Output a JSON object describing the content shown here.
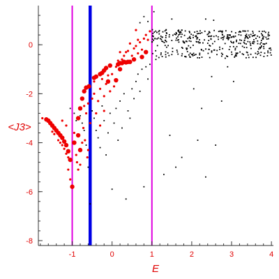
{
  "chart_data": {
    "type": "scatter",
    "title": "",
    "xlabel": "E",
    "ylabel": "<J3>",
    "xlim": [
      -1.85,
      4.05
    ],
    "ylim": [
      -8.2,
      1.6
    ],
    "x_ticks": [
      -1,
      0,
      1,
      2,
      3,
      4
    ],
    "x_tick_labels": [
      "-1",
      "0",
      "1",
      "2",
      "3",
      "4"
    ],
    "y_ticks": [
      0,
      -2,
      -4,
      -6,
      -8
    ],
    "y_tick_labels": [
      "0",
      "-2",
      "-4",
      "-6",
      "-8"
    ],
    "grid": false,
    "colors": {
      "axes": "#333333",
      "labels": "#e00000",
      "red_points": "#ee0000",
      "black_points": "#000000",
      "magenta_lines": "#e000e0",
      "blue_line": "#0000e6"
    },
    "vertical_lines": [
      {
        "x": -1.0,
        "color": "magenta"
      },
      {
        "x": -0.55,
        "color": "blue"
      },
      {
        "x": 1.0,
        "color": "magenta"
      }
    ],
    "series": [
      {
        "marker": "large red circles",
        "points": [
          [
            -1.65,
            -3.05
          ],
          [
            -1.6,
            -3.1
          ],
          [
            -1.55,
            -3.2
          ],
          [
            -1.5,
            -3.3
          ],
          [
            -1.45,
            -3.4
          ],
          [
            -1.4,
            -3.5
          ],
          [
            -1.35,
            -3.6
          ],
          [
            -1.3,
            -3.7
          ],
          [
            -1.25,
            -3.8
          ],
          [
            -1.2,
            -3.95
          ],
          [
            -1.15,
            -4.1
          ],
          [
            -1.1,
            -4.35
          ],
          [
            -1.05,
            -4.7
          ],
          [
            -1.0,
            -5.8
          ],
          [
            -0.85,
            -3.0
          ],
          [
            -0.8,
            -2.6
          ],
          [
            -0.75,
            -2.2
          ],
          [
            -0.7,
            -1.9
          ],
          [
            -0.65,
            -1.75
          ],
          [
            -0.58,
            -1.7
          ],
          [
            -0.45,
            -1.35
          ],
          [
            -0.4,
            -1.3
          ],
          [
            -0.3,
            -1.2
          ],
          [
            -0.25,
            -1.15
          ],
          [
            -0.2,
            -1.05
          ],
          [
            -0.15,
            -0.95
          ],
          [
            -0.05,
            -0.85
          ],
          [
            -0.1,
            -1.5
          ],
          [
            0.15,
            -0.8
          ],
          [
            0.2,
            -0.75
          ],
          [
            0.25,
            -0.75
          ],
          [
            0.3,
            -0.7
          ],
          [
            0.35,
            -0.72
          ],
          [
            0.4,
            -0.7
          ],
          [
            0.45,
            -0.7
          ],
          [
            0.55,
            -0.6
          ],
          [
            0.75,
            -0.5
          ],
          [
            0.85,
            -0.3
          ],
          [
            -0.85,
            -3.7
          ],
          [
            -0.95,
            -4.0
          ],
          [
            -0.8,
            -4.3
          ],
          [
            0.1,
            -1.45
          ],
          [
            0.2,
            -1.0
          ]
        ]
      },
      {
        "marker": "small red dots",
        "points": [
          [
            -1.75,
            -3.0
          ],
          [
            -1.5,
            -3.55
          ],
          [
            -1.45,
            -3.65
          ],
          [
            -1.35,
            -3.9
          ],
          [
            -1.3,
            -4.0
          ],
          [
            -1.25,
            -4.1
          ],
          [
            -1.2,
            -4.25
          ],
          [
            -1.15,
            -4.45
          ],
          [
            -1.1,
            -4.6
          ],
          [
            -1.1,
            -5.1
          ],
          [
            -1.05,
            -5.5
          ],
          [
            -1.25,
            -3.1
          ],
          [
            -1.15,
            -3.3
          ],
          [
            -0.95,
            -3.6
          ],
          [
            -0.9,
            -4.5
          ],
          [
            -0.88,
            -4.8
          ],
          [
            -0.85,
            -5.1
          ],
          [
            -0.8,
            -4.9
          ],
          [
            -0.7,
            -2.5
          ],
          [
            -0.72,
            -3.4
          ],
          [
            -0.68,
            -3.9
          ],
          [
            -0.6,
            -2.4
          ],
          [
            -0.5,
            -2.2
          ],
          [
            -0.45,
            -2.0
          ],
          [
            -0.35,
            -2.3
          ],
          [
            -0.3,
            -1.8
          ],
          [
            -0.2,
            -2.1
          ],
          [
            -0.15,
            -1.6
          ],
          [
            -0.05,
            -1.9
          ],
          [
            0.05,
            -1.7
          ],
          [
            0.1,
            -0.9
          ],
          [
            0.15,
            -0.65
          ],
          [
            0.25,
            -0.6
          ],
          [
            0.3,
            -0.45
          ],
          [
            0.35,
            -0.3
          ],
          [
            0.4,
            -0.25
          ],
          [
            0.5,
            -0.45
          ],
          [
            0.55,
            -0.15
          ],
          [
            0.6,
            -0.05
          ],
          [
            0.65,
            -0.35
          ],
          [
            0.7,
            0.1
          ],
          [
            0.75,
            -0.2
          ],
          [
            0.8,
            0.25
          ],
          [
            0.85,
            0.4
          ],
          [
            0.9,
            0.2
          ],
          [
            0.95,
            0.55
          ],
          [
            0.6,
            0.6
          ],
          [
            0.65,
            0.2
          ],
          [
            0.45,
            0.05
          ],
          [
            0.2,
            -0.3
          ],
          [
            -0.45,
            -1.5
          ],
          [
            -0.25,
            -1.4
          ],
          [
            -0.1,
            -1.25
          ],
          [
            0.0,
            -1.2
          ],
          [
            -0.65,
            -2.8
          ],
          [
            -0.55,
            -3.2
          ],
          [
            -0.4,
            -2.8
          ],
          [
            -0.3,
            -3.3
          ],
          [
            -0.2,
            -2.7
          ],
          [
            -0.75,
            -4.0
          ],
          [
            -0.6,
            -4.3
          ],
          [
            -0.62,
            -4.6
          ]
        ]
      },
      {
        "marker": "small black dots",
        "points": [
          [
            -1.05,
            -2.6
          ],
          [
            -0.95,
            -2.8
          ],
          [
            -0.9,
            -3.1
          ],
          [
            -0.8,
            -2.9
          ],
          [
            -0.75,
            -3.2
          ],
          [
            -0.7,
            -3.5
          ],
          [
            -0.65,
            -4.1
          ],
          [
            -0.6,
            -5.0
          ],
          [
            -0.55,
            -6.5
          ],
          [
            -0.5,
            -2.7
          ],
          [
            -0.45,
            -3.0
          ],
          [
            -0.4,
            -3.5
          ],
          [
            -0.35,
            -3.8
          ],
          [
            -0.3,
            -4.2
          ],
          [
            -0.25,
            -2.5
          ],
          [
            -0.2,
            -3.1
          ],
          [
            -0.15,
            -4.5
          ],
          [
            -0.1,
            -3.6
          ],
          [
            -0.05,
            -2.8
          ],
          [
            0.0,
            -5.9
          ],
          [
            0.05,
            -3.2
          ],
          [
            0.1,
            -2.6
          ],
          [
            0.15,
            -3.9
          ],
          [
            0.2,
            -2.3
          ],
          [
            0.25,
            -3.4
          ],
          [
            0.3,
            -2.0
          ],
          [
            0.35,
            -6.3
          ],
          [
            0.4,
            -2.7
          ],
          [
            0.45,
            -3.0
          ],
          [
            0.5,
            -1.8
          ],
          [
            0.55,
            -2.2
          ],
          [
            0.6,
            -1.5
          ],
          [
            0.65,
            -1.2
          ],
          [
            0.7,
            -1.9
          ],
          [
            0.75,
            -1.0
          ],
          [
            0.8,
            -5.8
          ],
          [
            0.85,
            -0.9
          ],
          [
            0.9,
            -1.4
          ],
          [
            0.95,
            -0.8
          ],
          [
            1.3,
            -5.3
          ],
          [
            1.45,
            -3.7
          ],
          [
            1.6,
            -5.0
          ],
          [
            1.75,
            -4.6
          ],
          [
            2.05,
            -1.8
          ],
          [
            2.15,
            -3.9
          ],
          [
            2.25,
            -2.6
          ],
          [
            2.35,
            -5.4
          ],
          [
            2.5,
            -1.3
          ],
          [
            2.6,
            -4.1
          ],
          [
            2.75,
            -2.3
          ],
          [
            2.9,
            -0.9
          ],
          [
            3.05,
            -1.5
          ],
          [
            0.6,
            0.6
          ],
          [
            0.7,
            0.9
          ],
          [
            0.8,
            1.15
          ],
          [
            0.9,
            0.95
          ],
          [
            1.05,
            1.35
          ],
          [
            1.5,
            1.05
          ],
          [
            2.35,
            1.05
          ],
          [
            2.55,
            1.0
          ],
          [
            1.1,
            -0.6
          ],
          [
            1.35,
            -0.5
          ],
          [
            1.5,
            -0.4
          ],
          [
            1.75,
            -0.45
          ],
          [
            2.0,
            -0.4
          ],
          [
            2.2,
            -0.35
          ],
          [
            2.5,
            -0.3
          ],
          [
            2.75,
            -0.35
          ],
          [
            3.0,
            -0.3
          ],
          [
            3.3,
            -0.4
          ],
          [
            3.6,
            -0.35
          ],
          [
            3.9,
            -0.45
          ]
        ]
      },
      {
        "marker": "small black dots (dense cloud)",
        "cloud": {
          "x_range": [
            1.0,
            4.0
          ],
          "y_center": 0.1,
          "y_spread": 0.55
        }
      }
    ]
  }
}
